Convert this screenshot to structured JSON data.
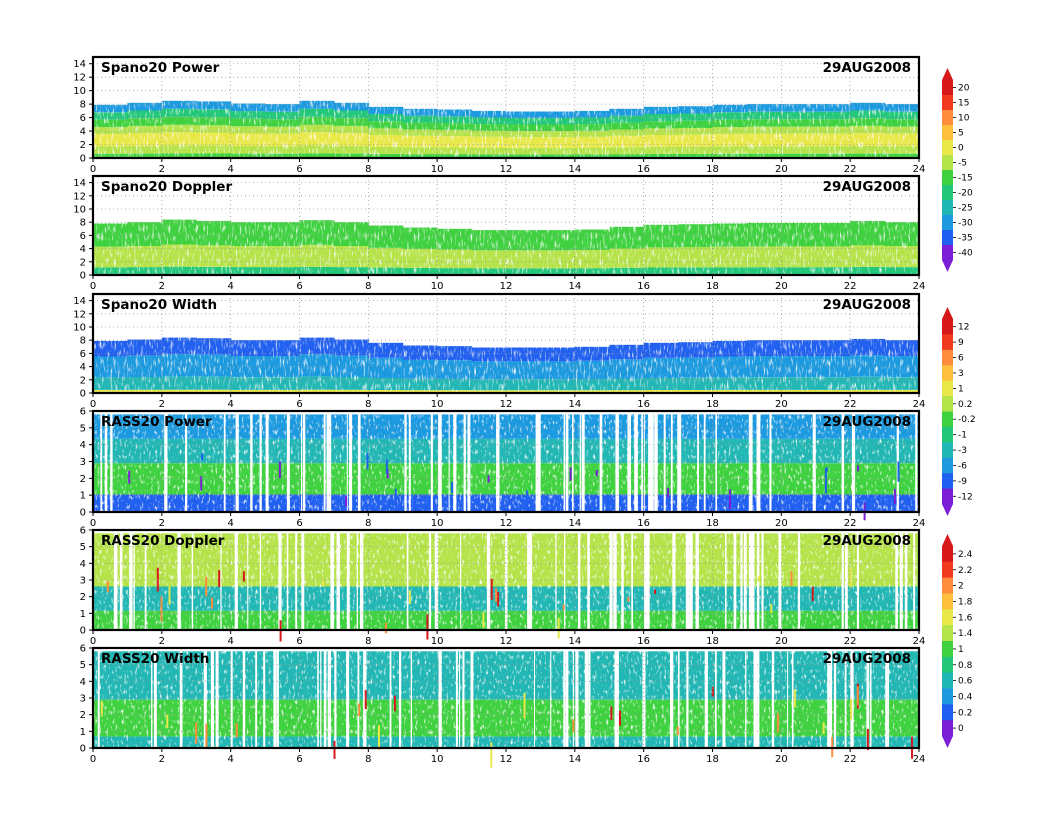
{
  "figure": {
    "x_ticks": [
      "0",
      "2",
      "4",
      "6",
      "8",
      "10",
      "12",
      "14",
      "16",
      "18",
      "20",
      "22",
      "24"
    ],
    "xlim": [
      0,
      24
    ]
  },
  "chart_data": [
    {
      "type": "heatmap",
      "title": "Spano20 Power",
      "date": "29AUG2008",
      "xlim": [
        0,
        24
      ],
      "ylim": [
        0,
        15
      ],
      "y_ticks": [
        "0",
        "2",
        "4",
        "6",
        "8",
        "10",
        "12",
        "14"
      ],
      "grid": true,
      "data_top": [
        7.9,
        8.2,
        8.5,
        8.4,
        8.1,
        8.0,
        8.5,
        8.2,
        7.6,
        7.3,
        7.2,
        7.0,
        6.9,
        6.9,
        7.0,
        7.3,
        7.6,
        7.7,
        7.9,
        8.0,
        8.0,
        8.0,
        8.2,
        8.0,
        7.9
      ],
      "color_levels": [
        20,
        15,
        10,
        5,
        0,
        -5,
        -15,
        -20,
        -25,
        -30,
        -35,
        -40
      ]
    },
    {
      "type": "heatmap",
      "title": "Spano20 Doppler",
      "date": "29AUG2008",
      "xlim": [
        0,
        24
      ],
      "ylim": [
        0,
        15
      ],
      "y_ticks": [
        "0",
        "2",
        "4",
        "6",
        "8",
        "10",
        "12",
        "14"
      ],
      "grid": true,
      "data_top": [
        7.8,
        8.0,
        8.4,
        8.2,
        8.0,
        8.0,
        8.3,
        8.0,
        7.5,
        7.2,
        7.0,
        6.8,
        6.8,
        6.8,
        6.9,
        7.3,
        7.6,
        7.7,
        7.8,
        7.9,
        7.9,
        7.9,
        8.2,
        8.0,
        7.9
      ]
    },
    {
      "type": "heatmap",
      "title": "Spano20 Width",
      "date": "29AUG2008",
      "xlim": [
        0,
        24
      ],
      "ylim": [
        0,
        15
      ],
      "y_ticks": [
        "0",
        "2",
        "4",
        "6",
        "8",
        "10",
        "12",
        "14"
      ],
      "grid": true,
      "data_top": [
        7.9,
        8.1,
        8.4,
        8.3,
        8.0,
        8.0,
        8.4,
        8.1,
        7.6,
        7.2,
        7.1,
        6.9,
        6.9,
        6.9,
        7.0,
        7.3,
        7.6,
        7.7,
        7.9,
        8.0,
        8.0,
        8.0,
        8.2,
        8.0,
        7.9
      ],
      "color_levels": [
        "12",
        "9",
        "6",
        "3",
        "1",
        "0.2",
        "-0.2",
        "-1",
        "-3",
        "-6",
        "-9",
        "-12"
      ]
    },
    {
      "type": "heatmap",
      "title": "RASS20 Power",
      "date": "29AUG2008",
      "xlim": [
        0,
        24
      ],
      "ylim": [
        0,
        6
      ],
      "y_ticks": [
        "0",
        "1",
        "2",
        "3",
        "4",
        "5",
        "6"
      ],
      "grid": true,
      "data_top": [
        5.8,
        5.8,
        5.8,
        5.8,
        5.8,
        5.8,
        5.8,
        5.8,
        5.8,
        5.8,
        5.8,
        5.8,
        5.8,
        5.8,
        5.8,
        5.8,
        5.8,
        5.8,
        5.8,
        5.8,
        5.8,
        5.8,
        5.8,
        5.8,
        5.8
      ]
    },
    {
      "type": "heatmap",
      "title": "RASS20 Doppler",
      "date": "29AUG2008",
      "xlim": [
        0,
        24
      ],
      "ylim": [
        0,
        6
      ],
      "y_ticks": [
        "0",
        "1",
        "2",
        "3",
        "4",
        "5",
        "6"
      ],
      "grid": true,
      "data_top": [
        5.8,
        5.8,
        5.8,
        5.8,
        5.8,
        5.8,
        5.8,
        5.8,
        5.8,
        5.8,
        5.8,
        5.8,
        5.8,
        5.8,
        5.8,
        5.8,
        5.8,
        5.8,
        5.8,
        5.8,
        5.8,
        5.8,
        5.8,
        5.8,
        5.8
      ],
      "color_levels": [
        "2.4",
        "2.2",
        "2",
        "1.8",
        "1.6",
        "1.4",
        "1",
        "0.8",
        "0.6",
        "0.4",
        "0.2",
        "0"
      ]
    },
    {
      "type": "heatmap",
      "title": "RASS20 Width",
      "date": "29AUG2008",
      "xlim": [
        0,
        24
      ],
      "ylim": [
        0,
        6
      ],
      "y_ticks": [
        "0",
        "1",
        "2",
        "3",
        "4",
        "5",
        "6"
      ],
      "grid": true,
      "data_top": [
        5.8,
        5.8,
        5.8,
        5.8,
        5.8,
        5.8,
        5.8,
        5.8,
        5.8,
        5.8,
        5.8,
        5.8,
        5.8,
        5.8,
        5.8,
        5.8,
        5.8,
        5.8,
        5.8,
        5.8,
        5.8,
        5.8,
        5.8,
        5.8,
        5.8
      ]
    }
  ],
  "colors": {
    "palette": [
      "#d7191c",
      "#f03b20",
      "#fd8d3c",
      "#fdbf3c",
      "#e8e84a",
      "#b5e34a",
      "#3fd13f",
      "#22c77a",
      "#21b7b4",
      "#1f9ae0",
      "#2060f0",
      "#7a1fd6"
    ],
    "frame": "#000000",
    "grid": "#9a9a9a",
    "gap": "#ffffff"
  }
}
